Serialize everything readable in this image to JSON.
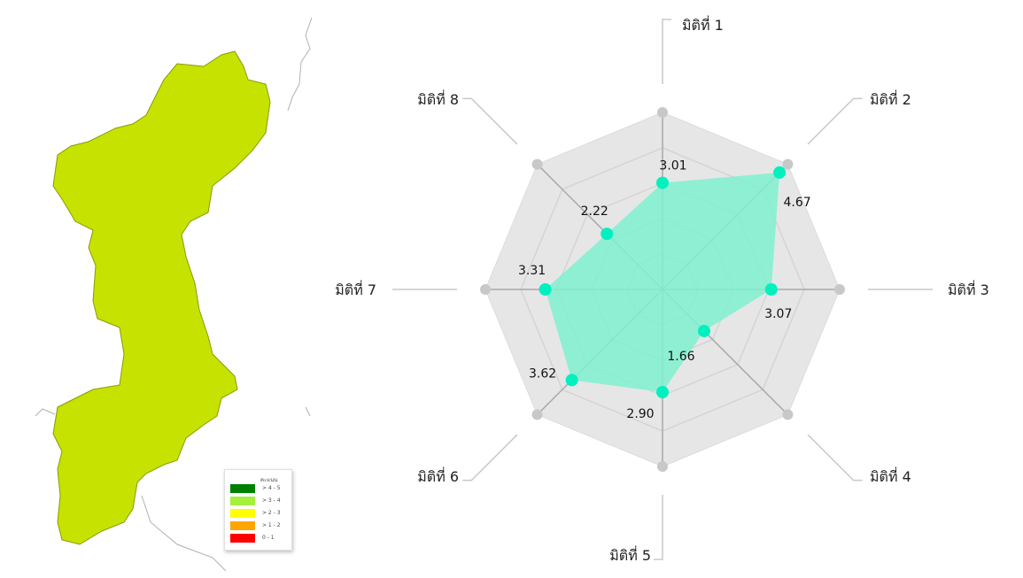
{
  "map": {
    "region_color": "#c6e200",
    "legend": {
      "title": "คะแนน",
      "items": [
        {
          "label": "> 4 - 5",
          "color": "#008000"
        },
        {
          "label": "> 3 - 4",
          "color": "#a5f03c"
        },
        {
          "label": "> 2 - 3",
          "color": "#ffff00"
        },
        {
          "label": "> 1 - 2",
          "color": "#ffa500"
        },
        {
          "label": "0 - 1",
          "color": "#ff0000"
        }
      ]
    }
  },
  "chart_data": {
    "type": "radar",
    "axes": [
      "มิติที่ 1",
      "มิติที่ 2",
      "มิติที่ 3",
      "มิติที่ 4",
      "มิติที่ 5",
      "มิติที่ 6",
      "มิติที่ 7",
      "มิติที่ 8"
    ],
    "values": [
      3.01,
      4.67,
      3.07,
      1.66,
      2.9,
      3.62,
      3.31,
      2.22
    ],
    "value_labels": [
      "3.01",
      "4.67",
      "3.07",
      "1.66",
      "2.90",
      "3.62",
      "3.31",
      "2.22"
    ],
    "range": [
      0,
      5
    ],
    "fill_color": "#7ff0cf",
    "point_color": "#00f0c0",
    "grid_color": "#e6e6e6"
  }
}
